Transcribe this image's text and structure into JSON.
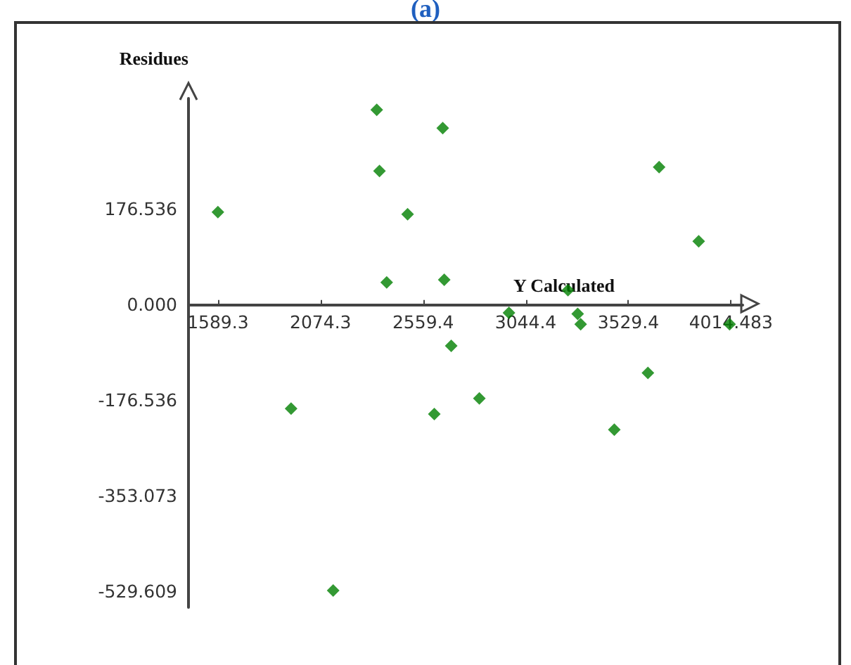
{
  "chart_data": {
    "type": "scatter",
    "title": "(a)",
    "xlabel": "Y Calculated",
    "ylabel": "Residues",
    "x": [
      1589,
      2340,
      2652,
      2353,
      2486,
      3675,
      3862,
      2387,
      2659,
      3244,
      2965,
      3290,
      3304,
      2692,
      4008,
      1935,
      2612,
      2825,
      3622,
      3463,
      2134
    ],
    "series": [
      {
        "color": "#008000",
        "values": [
          170,
          359,
          325,
          246,
          166,
          253,
          116,
          40,
          45,
          26,
          -16,
          -18,
          -37,
          -77,
          -37,
          -193,
          -203,
          -174,
          -127,
          -232,
          -529
        ]
      }
    ],
    "xlim": [
      1450,
      4070
    ],
    "ylim": [
      -560,
      380
    ],
    "xticks": [
      1589.3,
      2074.3,
      2559.4,
      3044.4,
      3529.4,
      4014.483
    ],
    "yticks": [
      -529.609,
      -353.073,
      -176.536,
      {
        "value": 0,
        "label": "0.000"
      },
      176.536
    ],
    "marker": "diamond",
    "grid": false
  }
}
